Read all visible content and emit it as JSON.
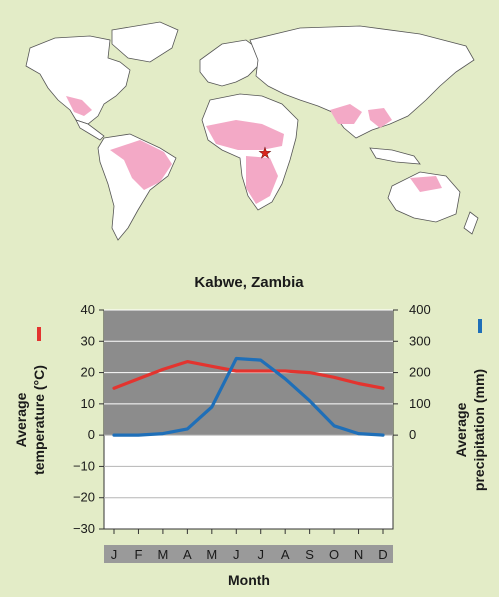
{
  "map": {
    "land_color": "#ffffff",
    "biome_color": "#f3a9c6",
    "marker": "star-icon",
    "marker_color": "#d9261c"
  },
  "chart_data": {
    "type": "line",
    "title": "Kabwe, Zambia",
    "xlabel": "Month",
    "categories": [
      "J",
      "F",
      "M",
      "A",
      "M",
      "J",
      "J",
      "A",
      "S",
      "O",
      "N",
      "D"
    ],
    "y_left": {
      "label_line1": "Average",
      "label_line2": "temperature (°C)",
      "ticks": [
        40,
        30,
        20,
        10,
        0,
        -10,
        -20,
        -30
      ],
      "tick_labels": [
        "40",
        "30",
        "20",
        "10",
        "0",
        "−10",
        "−20",
        "−30"
      ],
      "ylim": [
        -30,
        40
      ]
    },
    "y_right": {
      "label_line1": "Average",
      "label_line2": "precipitation (mm)",
      "ticks": [
        400,
        300,
        200,
        100,
        0
      ],
      "tick_labels": [
        "400",
        "300",
        "200",
        "100",
        "0"
      ],
      "ylim": [
        -300,
        400
      ]
    },
    "series": [
      {
        "axis": "left",
        "color": "#e3342f",
        "values": [
          15,
          18,
          21,
          23.5,
          22,
          20.5,
          20.5,
          20.5,
          20,
          18.5,
          16.5,
          15
        ]
      },
      {
        "axis": "right",
        "color": "#1f6fb8",
        "values": [
          0,
          0,
          5,
          20,
          90,
          245,
          240,
          180,
          110,
          30,
          5,
          0
        ]
      }
    ],
    "grid": true,
    "shaded_band_color": "#8c8c8c",
    "month_band_color": "#9a9a9a"
  }
}
